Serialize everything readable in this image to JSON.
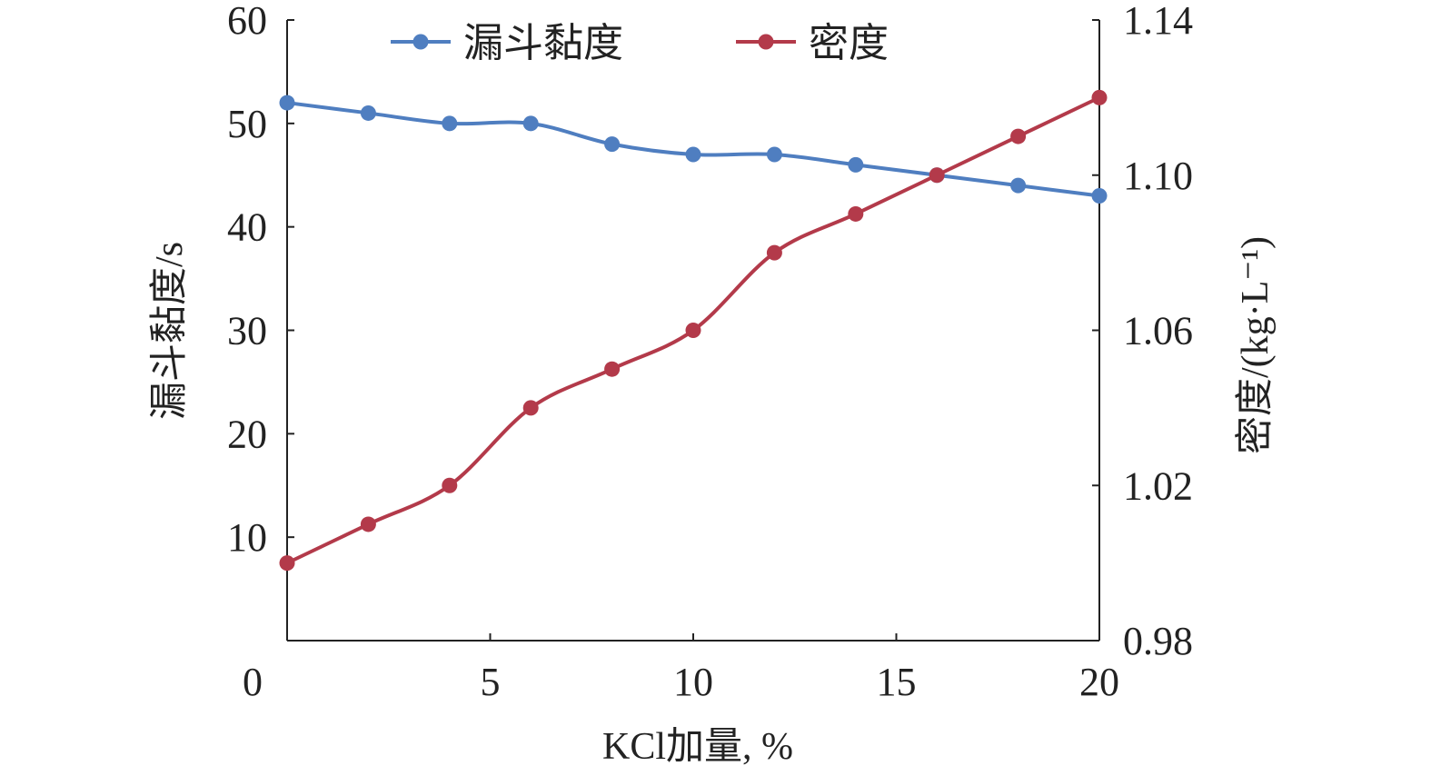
{
  "chart_data": {
    "type": "line",
    "title": "",
    "xlabel": "KCl加量, %",
    "ylabel_left": "漏斗黏度/s",
    "ylabel_right": "密度/(kg·L⁻¹)",
    "x": [
      0,
      2,
      4,
      6,
      8,
      10,
      12,
      14,
      16,
      18,
      20
    ],
    "xlim": [
      0,
      20
    ],
    "xticks": [
      "0",
      "5",
      "10",
      "15",
      "20"
    ],
    "ylim_left": [
      0,
      60
    ],
    "yticks_left": [
      "10",
      "20",
      "30",
      "40",
      "50",
      "60"
    ],
    "ylim_right": [
      0.98,
      1.14
    ],
    "yticks_right": [
      "0.98",
      "1.02",
      "1.06",
      "1.10",
      "1.14"
    ],
    "grid": false,
    "legend_position": "top",
    "series": [
      {
        "name": "漏斗黏度",
        "axis": "left",
        "color": "#4f7ec0",
        "values": [
          52,
          51,
          50,
          50,
          48,
          47,
          47,
          46,
          45,
          44,
          43
        ]
      },
      {
        "name": "密度",
        "axis": "right",
        "color": "#b33a4a",
        "values": [
          1.0,
          1.01,
          1.02,
          1.04,
          1.05,
          1.06,
          1.08,
          1.09,
          1.1,
          1.11,
          1.12
        ]
      }
    ]
  }
}
